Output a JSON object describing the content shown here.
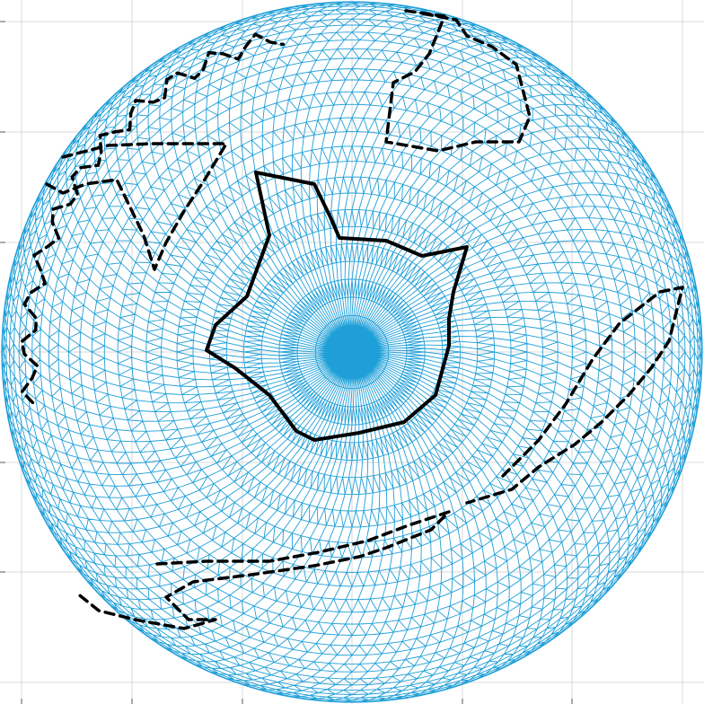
{
  "figure": {
    "background": "#ffffff",
    "axes_grid_color": "#d9d9d9",
    "mesh_color": "#1e9fd8",
    "outline_color": "#000000",
    "pole_fill": "#1e9fd8",
    "grid": true
  },
  "mesh": {
    "projection": "orthographic-polar",
    "rings": 30,
    "sectors": 128,
    "triangulated": true
  },
  "outlines": [
    {
      "name": "upper-right-continent-outline",
      "style": "dashed"
    },
    {
      "name": "left-continent-outline",
      "style": "dashed"
    },
    {
      "name": "central-continent-outline",
      "style": "solid-thick"
    },
    {
      "name": "lower-left-continent-outline",
      "style": "dashed"
    },
    {
      "name": "right-ridge-outline",
      "style": "dashed"
    }
  ]
}
